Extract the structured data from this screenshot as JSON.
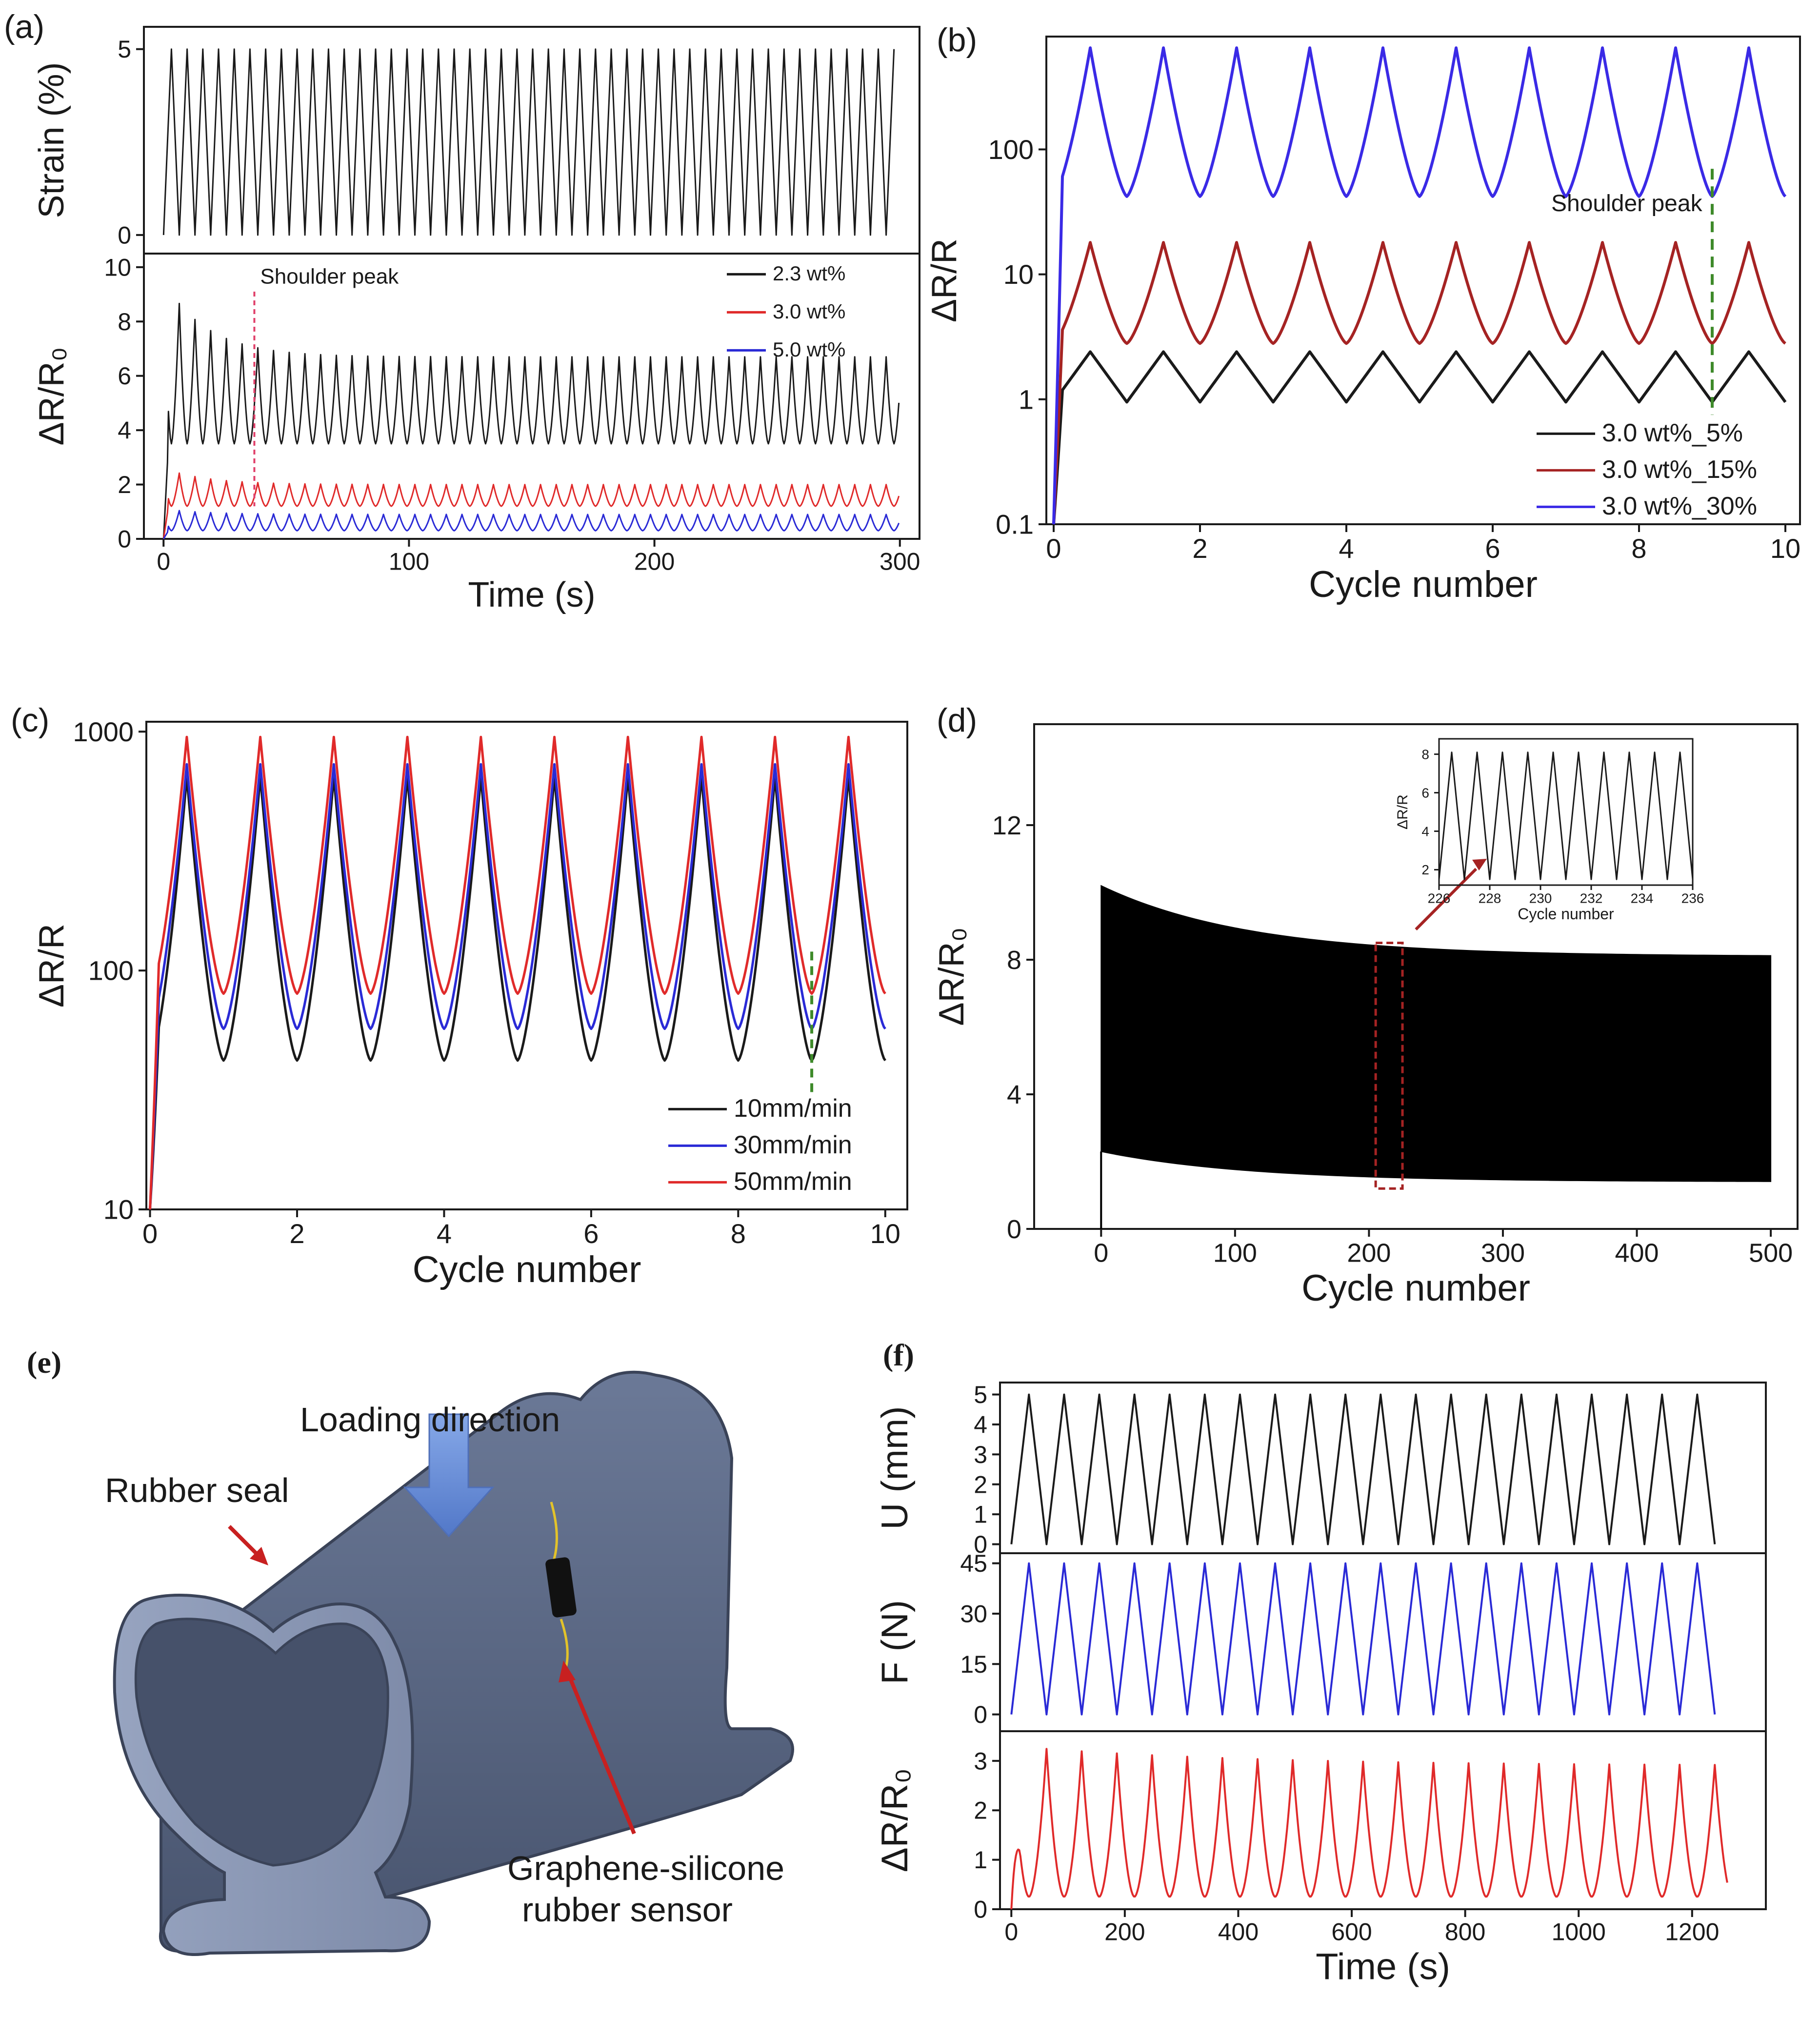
{
  "panels": {
    "a": {
      "letter": "(a)"
    },
    "b": {
      "letter": "(b)"
    },
    "c": {
      "letter": "(c)"
    },
    "d": {
      "letter": "(d)"
    },
    "e": {
      "letter": "(e)"
    },
    "f": {
      "letter": "(f)"
    }
  },
  "colors": {
    "black": "#1a1a1a",
    "red": "#e02a2a",
    "blue": "#2a2ad6",
    "darkred": "#a52323",
    "violet": "#3a2ae6",
    "green": "#3e8a2a",
    "pink": "#e0406a",
    "seal": "#5d6b86",
    "seal_light": "#8592ad",
    "arrow": "#6a8fd8"
  },
  "chart_data": [
    {
      "id": "a-top",
      "type": "line",
      "ylabel": "Strain (%)",
      "xlim": [
        -8,
        308
      ],
      "ylim": [
        -0.5,
        5.6
      ],
      "yticks": [
        0,
        5
      ],
      "series": [
        {
          "name": "strain",
          "period_s": 6.4,
          "min": 0,
          "max": 5,
          "x_range": [
            0,
            300
          ]
        }
      ]
    },
    {
      "id": "a-bottom",
      "type": "line",
      "xlabel": "Time (s)",
      "ylabel": "ΔR/R₀",
      "xlim": [
        -8,
        308
      ],
      "ylim": [
        0,
        10.5
      ],
      "xticks": [
        0,
        100,
        200,
        300
      ],
      "yticks": [
        0,
        2,
        4,
        6,
        8,
        10
      ],
      "annotation": {
        "text": "Shoulder peak",
        "x": 37
      },
      "series": [
        {
          "name": "2.3 wt%",
          "peak_start": 9.5,
          "peak_end": 6.7,
          "valley": 3.5
        },
        {
          "name": "3.0 wt%",
          "peak_start": 2.6,
          "peak_end": 2.0,
          "valley": 1.2
        },
        {
          "name": "5.0 wt%",
          "peak_start": 1.1,
          "peak_end": 0.9,
          "valley": 0.3
        }
      ]
    },
    {
      "id": "b",
      "type": "line",
      "xlabel": "Cycle number",
      "ylabel": "ΔR/R",
      "yscale": "log",
      "xlim": [
        -0.1,
        10.2
      ],
      "ylim": [
        0.1,
        800
      ],
      "xticks": [
        0,
        2,
        4,
        6,
        8,
        10
      ],
      "yticks": [
        "0.1",
        "1",
        "10",
        "100"
      ],
      "annotation": {
        "text": "Shoulder peak",
        "x": 9
      },
      "series": [
        {
          "name": "3.0 wt%_5%",
          "peak": 2.4,
          "valley": 0.95
        },
        {
          "name": "3.0 wt%_15%",
          "peak": 18,
          "valley": 2.8
        },
        {
          "name": "3.0 wt%_30%",
          "peak": 650,
          "valley": 42
        }
      ]
    },
    {
      "id": "c",
      "type": "line",
      "xlabel": "Cycle number",
      "ylabel": "ΔR/R",
      "yscale": "log",
      "xlim": [
        -0.05,
        10.3
      ],
      "ylim": [
        10,
        1100
      ],
      "xticks": [
        0,
        2,
        4,
        6,
        8,
        10
      ],
      "yticks": [
        "10",
        "100",
        "1000"
      ],
      "series": [
        {
          "name": "10mm/min",
          "peak": 650,
          "valley": 42
        },
        {
          "name": "30mm/min",
          "peak": 730,
          "valley": 57
        },
        {
          "name": "50mm/min",
          "peak": 950,
          "valley": 80
        }
      ]
    },
    {
      "id": "d",
      "type": "area",
      "xlabel": "Cycle number",
      "ylabel": "ΔR/R₀",
      "xlim": [
        -50,
        520
      ],
      "ylim": [
        0,
        15
      ],
      "xticks": [
        0,
        100,
        200,
        300,
        400,
        500
      ],
      "yticks": [
        0,
        4,
        8,
        12
      ],
      "upper_envelope": {
        "start": 10.2,
        "end": 8.1
      },
      "lower_envelope": {
        "start": 2.3,
        "end": 1.4
      },
      "inset": {
        "xlabel": "Cycle number",
        "ylabel": "ΔR/R",
        "xlim": [
          226,
          236
        ],
        "ylim": [
          1.2,
          8.8
        ],
        "xticks": [
          226,
          228,
          230,
          232,
          234,
          236
        ],
        "yticks": [
          2,
          4,
          6,
          8
        ],
        "peak": 8.1,
        "valley": 1.5
      }
    },
    {
      "id": "f-U",
      "type": "line",
      "ylabel": "U (mm)",
      "xlim": [
        -20,
        1330
      ],
      "ylim": [
        -0.3,
        5.4
      ],
      "yticks": [
        0,
        1,
        2,
        3,
        4,
        5
      ],
      "series": [
        {
          "name": "U",
          "period_s": 62,
          "min": 0,
          "max": 5
        }
      ]
    },
    {
      "id": "f-F",
      "type": "line",
      "ylabel": "F (N)",
      "xlim": [
        -20,
        1330
      ],
      "ylim": [
        -5,
        48
      ],
      "yticks": [
        0,
        15,
        30,
        45
      ],
      "series": [
        {
          "name": "F",
          "period_s": 62,
          "min": 0,
          "max": 45
        }
      ]
    },
    {
      "id": "f-R",
      "type": "line",
      "xlabel": "Time (s)",
      "ylabel": "ΔR/R₀",
      "xlim": [
        -20,
        1330
      ],
      "ylim": [
        0,
        3.6
      ],
      "xticks": [
        0,
        200,
        400,
        600,
        800,
        1000,
        1200
      ],
      "yticks": [
        0,
        1,
        2,
        3
      ],
      "series": [
        {
          "name": "ΔR/R₀",
          "period_s": 62,
          "peak_start": 3.3,
          "peak_end": 2.9,
          "valley": 0.25
        }
      ]
    }
  ],
  "diagram_e": {
    "loading_label": "Loading direction",
    "seal_label": "Rubber seal",
    "sensor_label_1": "Graphene-silicone",
    "sensor_label_2": "rubber sensor"
  }
}
